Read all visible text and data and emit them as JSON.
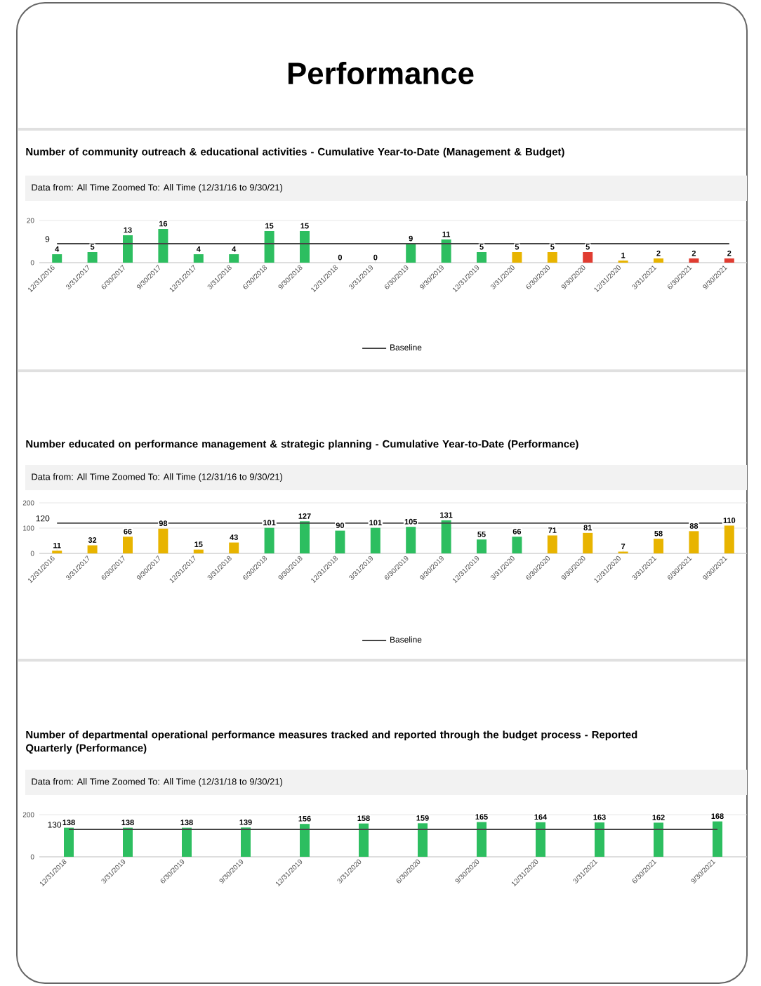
{
  "chart_data": [
    {
      "type": "other",
      "title": "Performance"
    },
    {
      "type": "bar",
      "title": "Number of community outreach & educational activities - Cumulative Year-to-Date (Management & Budget)",
      "subtitle": "Data from: All Time   Zoomed To: All Time (12/31/16 to 9/30/21)",
      "categories": [
        "12/31/2016",
        "3/31/2017",
        "6/30/2017",
        "9/30/2017",
        "12/31/2017",
        "3/31/2018",
        "6/30/2018",
        "9/30/2018",
        "12/31/2018",
        "3/31/2019",
        "6/30/2019",
        "9/30/2019",
        "12/31/2019",
        "3/31/2020",
        "6/30/2020",
        "9/30/2020",
        "12/31/2020",
        "3/31/2021",
        "6/30/2021",
        "9/30/2021"
      ],
      "series": [
        {
          "colors": [
            "#2dbe60",
            "#2dbe60",
            "#2dbe60",
            "#2dbe60",
            "#2dbe60",
            "#2dbe60",
            "#2dbe60",
            "#2dbe60",
            "#2dbe60",
            "#2dbe60",
            "#2dbe60",
            "#2dbe60",
            "#2dbe60",
            "#e8b400",
            "#e8b400",
            "#e03c31",
            "#e8b400",
            "#e8b400",
            "#e03c31",
            "#e03c31"
          ],
          "values": [
            4,
            5,
            13,
            16,
            4,
            4,
            15,
            15,
            0,
            0,
            9,
            11,
            5,
            5,
            5,
            5,
            1,
            2,
            2,
            2
          ],
          "value_labels": [
            "4",
            "5",
            "13",
            "16",
            "4",
            "4",
            "15",
            "15",
            "0",
            "0",
            "9",
            "11",
            "5",
            "5",
            "5",
            "5",
            "1",
            "2",
            "2",
            "2"
          ]
        },
        {
          "name": "Baseline",
          "type": "line",
          "color": "#444444",
          "values": [
            9,
            9,
            9,
            9,
            9,
            9,
            9,
            9,
            9,
            9,
            9,
            9,
            9,
            9,
            9,
            9,
            9,
            9,
            9,
            9
          ],
          "value_labels": [
            "9",
            null,
            null,
            null,
            null,
            null,
            null,
            null,
            null,
            null,
            null,
            null,
            null,
            null,
            null,
            null,
            null,
            null,
            null,
            null
          ]
        }
      ],
      "ylim": [
        0,
        20
      ],
      "yticks": [
        0,
        20
      ],
      "grid": "y",
      "legend": "bottom"
    },
    {
      "type": "bar",
      "title": "Number educated on performance management & strategic planning - Cumulative Year-to-Date (Performance)",
      "subtitle": "Data from: All Time   Zoomed To: All Time (12/31/16 to 9/30/21)",
      "categories": [
        "12/31/2016",
        "3/31/2017",
        "6/30/2017",
        "9/30/2017",
        "12/31/2017",
        "3/31/2018",
        "6/30/2018",
        "9/30/2018",
        "12/31/2018",
        "3/31/2019",
        "6/30/2019",
        "9/30/2019",
        "12/31/2019",
        "3/31/2020",
        "6/30/2020",
        "9/30/2020",
        "12/31/2020",
        "3/31/2021",
        "6/30/2021",
        "9/30/2021"
      ],
      "series": [
        {
          "colors": [
            "#e8b400",
            "#e8b400",
            "#e8b400",
            "#e8b400",
            "#e8b400",
            "#e8b400",
            "#2dbe60",
            "#2dbe60",
            "#2dbe60",
            "#2dbe60",
            "#2dbe60",
            "#2dbe60",
            "#2dbe60",
            "#2dbe60",
            "#e8b400",
            "#e8b400",
            "#e8b400",
            "#e8b400",
            "#e8b400",
            "#e8b400"
          ],
          "values": [
            11,
            32,
            66,
            98,
            15,
            43,
            101,
            127,
            90,
            101,
            105,
            131,
            55,
            66,
            71,
            81,
            7,
            58,
            88,
            110
          ],
          "value_labels": [
            "11",
            "32",
            "66",
            "98",
            "15",
            "43",
            "101",
            "127",
            "90",
            "101",
            "105",
            "131",
            "55",
            "66",
            "71",
            "81",
            "7",
            "58",
            "88",
            "110"
          ]
        },
        {
          "name": "Baseline",
          "type": "line",
          "color": "#444444",
          "values": [
            120,
            120,
            120,
            120,
            120,
            120,
            120,
            120,
            120,
            120,
            120,
            120,
            120,
            120,
            120,
            120,
            120,
            120,
            120,
            120
          ],
          "value_labels": [
            "120",
            null,
            null,
            null,
            null,
            null,
            null,
            null,
            null,
            null,
            null,
            null,
            null,
            null,
            null,
            null,
            null,
            null,
            null,
            null
          ]
        }
      ],
      "ylim": [
        0,
        200
      ],
      "yticks": [
        0,
        100,
        200
      ],
      "grid": "y",
      "legend": "bottom"
    },
    {
      "type": "bar",
      "title": "Number of departmental operational performance measures tracked and reported through the budget process - Reported Quarterly (Performance)",
      "subtitle": "Data from: All Time   Zoomed To: All Time (12/31/18 to 9/30/21)",
      "categories": [
        "12/31/2018",
        "3/31/2019",
        "6/30/2019",
        "9/30/2019",
        "12/31/2019",
        "3/31/2020",
        "6/30/2020",
        "9/30/2020",
        "12/31/2020",
        "3/31/2021",
        "6/30/2021",
        "9/30/2021"
      ],
      "series": [
        {
          "colors": [
            "#2dbe60",
            "#2dbe60",
            "#2dbe60",
            "#2dbe60",
            "#2dbe60",
            "#2dbe60",
            "#2dbe60",
            "#2dbe60",
            "#2dbe60",
            "#2dbe60",
            "#2dbe60",
            "#2dbe60"
          ],
          "values": [
            138,
            138,
            138,
            139,
            156,
            158,
            159,
            165,
            164,
            163,
            162,
            168
          ],
          "value_labels": [
            "138",
            "138",
            "138",
            "139",
            "156",
            "158",
            "159",
            "165",
            "164",
            "163",
            "162",
            "168"
          ]
        },
        {
          "type": "line",
          "color": "#444444",
          "values": [
            130,
            130,
            130,
            130,
            130,
            130,
            130,
            130,
            130,
            130,
            130,
            130
          ],
          "value_labels": [
            "130",
            null,
            null,
            null,
            null,
            null,
            null,
            null,
            null,
            null,
            null,
            null
          ]
        }
      ],
      "ylim": [
        0,
        200
      ],
      "yticks": [
        0,
        200
      ],
      "grid": "y"
    }
  ]
}
